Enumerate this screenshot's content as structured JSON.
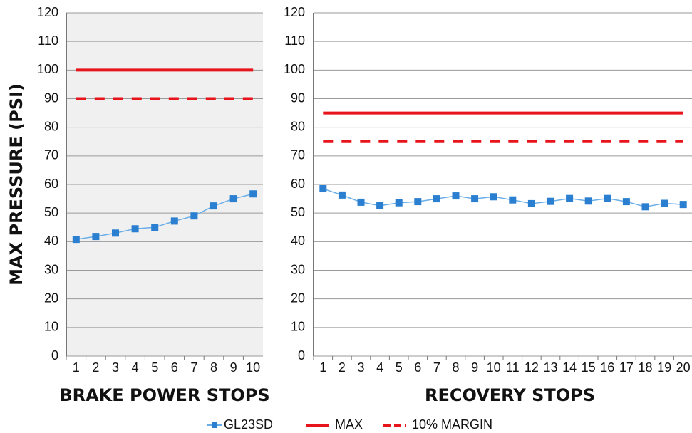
{
  "chart_data": [
    {
      "type": "line",
      "ylabel": "MAX PRESSURE (PSI)",
      "xlabel": "BRAKE POWER STOPS",
      "categories": [
        "1",
        "2",
        "3",
        "4",
        "5",
        "6",
        "7",
        "8",
        "9",
        "10"
      ],
      "ylim": [
        0,
        120
      ],
      "yticks": [
        0,
        10,
        20,
        30,
        40,
        50,
        60,
        70,
        80,
        90,
        100,
        110,
        120
      ],
      "grid": true,
      "series": [
        {
          "name": "GL23SD",
          "color": "#2a7fd0",
          "style": "markers",
          "values": [
            40.8,
            41.8,
            43,
            44.5,
            45,
            47.2,
            49,
            52.5,
            55,
            56.7
          ]
        },
        {
          "name": "MAX",
          "color": "#e8141b",
          "style": "solid",
          "values": [
            100,
            100,
            100,
            100,
            100,
            100,
            100,
            100,
            100,
            100
          ]
        },
        {
          "name": "10% MARGIN",
          "color": "#e8141b",
          "style": "dashed",
          "values": [
            90,
            90,
            90,
            90,
            90,
            90,
            90,
            90,
            90,
            90
          ]
        }
      ]
    },
    {
      "type": "line",
      "xlabel": "RECOVERY STOPS",
      "categories": [
        "1",
        "2",
        "3",
        "4",
        "5",
        "6",
        "7",
        "8",
        "9",
        "10",
        "11",
        "12",
        "13",
        "14",
        "15",
        "16",
        "17",
        "18",
        "19",
        "20"
      ],
      "ylim": [
        0,
        120
      ],
      "yticks": [
        0,
        10,
        20,
        30,
        40,
        50,
        60,
        70,
        80,
        90,
        100,
        110,
        120
      ],
      "grid": true,
      "series": [
        {
          "name": "GL23SD",
          "color": "#2a7fd0",
          "style": "markers",
          "values": [
            58.5,
            56.3,
            53.8,
            52.6,
            53.6,
            54,
            55,
            56,
            55,
            55.7,
            54.6,
            53.3,
            54.1,
            55.1,
            54.2,
            55.1,
            54,
            52.2,
            53.4,
            53
          ]
        },
        {
          "name": "MAX",
          "color": "#e8141b",
          "style": "solid",
          "values": [
            85,
            85,
            85,
            85,
            85,
            85,
            85,
            85,
            85,
            85,
            85,
            85,
            85,
            85,
            85,
            85,
            85,
            85,
            85,
            85
          ]
        },
        {
          "name": "10% MARGIN",
          "color": "#e8141b",
          "style": "dashed",
          "values": [
            75,
            75,
            75,
            75,
            75,
            75,
            75,
            75,
            75,
            75,
            75,
            75,
            75,
            75,
            75,
            75,
            75,
            75,
            75,
            75
          ]
        }
      ]
    }
  ]
}
